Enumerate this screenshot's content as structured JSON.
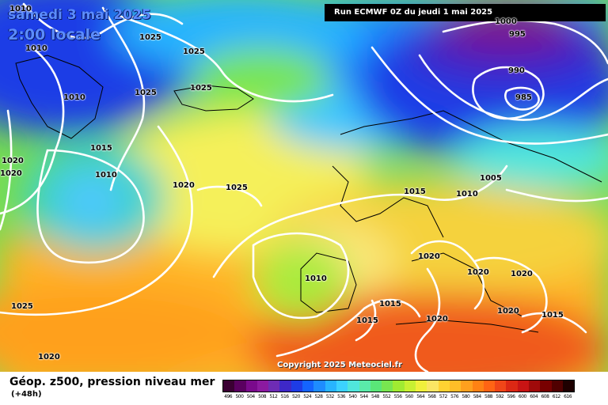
{
  "header": {
    "date": "samedi 3 mai 2025",
    "time": "2:00 locale",
    "run": "Run ECMWF 0Z du jeudi 1 mai 2025"
  },
  "copyright": "Copyright 2025 Meteociel.fr",
  "isobar_labels": [
    "1010",
    "1025",
    "1025",
    "1010",
    "1025",
    "1025",
    "1010",
    "1015",
    "1020",
    "1010",
    "1020",
    "1025",
    "1000",
    "995",
    "990",
    "985",
    "1005",
    "1015",
    "1010",
    "1020",
    "1010",
    "1020",
    "1020",
    "1015",
    "1015",
    "1020",
    "1020",
    "1015",
    "1025",
    "1020"
  ],
  "footer": {
    "title": "Géop. z500, pression niveau mer",
    "lead": "(+48h)"
  },
  "scale": {
    "labels": [
      "496",
      "500",
      "504",
      "508",
      "512",
      "516",
      "520",
      "524",
      "528",
      "532",
      "536",
      "540",
      "544",
      "548",
      "552",
      "556",
      "560",
      "564",
      "568",
      "572",
      "576",
      "580",
      "584",
      "588",
      "592",
      "596",
      "600",
      "604",
      "608",
      "612",
      "616"
    ],
    "colors": [
      "#3a0032",
      "#5a0060",
      "#7a0a8c",
      "#8c1aa0",
      "#6e2cb4",
      "#3e28c8",
      "#1e3ce6",
      "#1464ff",
      "#1e8cff",
      "#28b4ff",
      "#3cd2ff",
      "#50e6dc",
      "#5aebaa",
      "#5ae678",
      "#78e650",
      "#a0eb32",
      "#c8f032",
      "#f0f03c",
      "#fae664",
      "#ffd232",
      "#ffbe28",
      "#ffa01e",
      "#ff8214",
      "#ff6414",
      "#f04618",
      "#dc2814",
      "#c81414",
      "#a00a0a",
      "#780000",
      "#500000",
      "#1e0000"
    ]
  }
}
